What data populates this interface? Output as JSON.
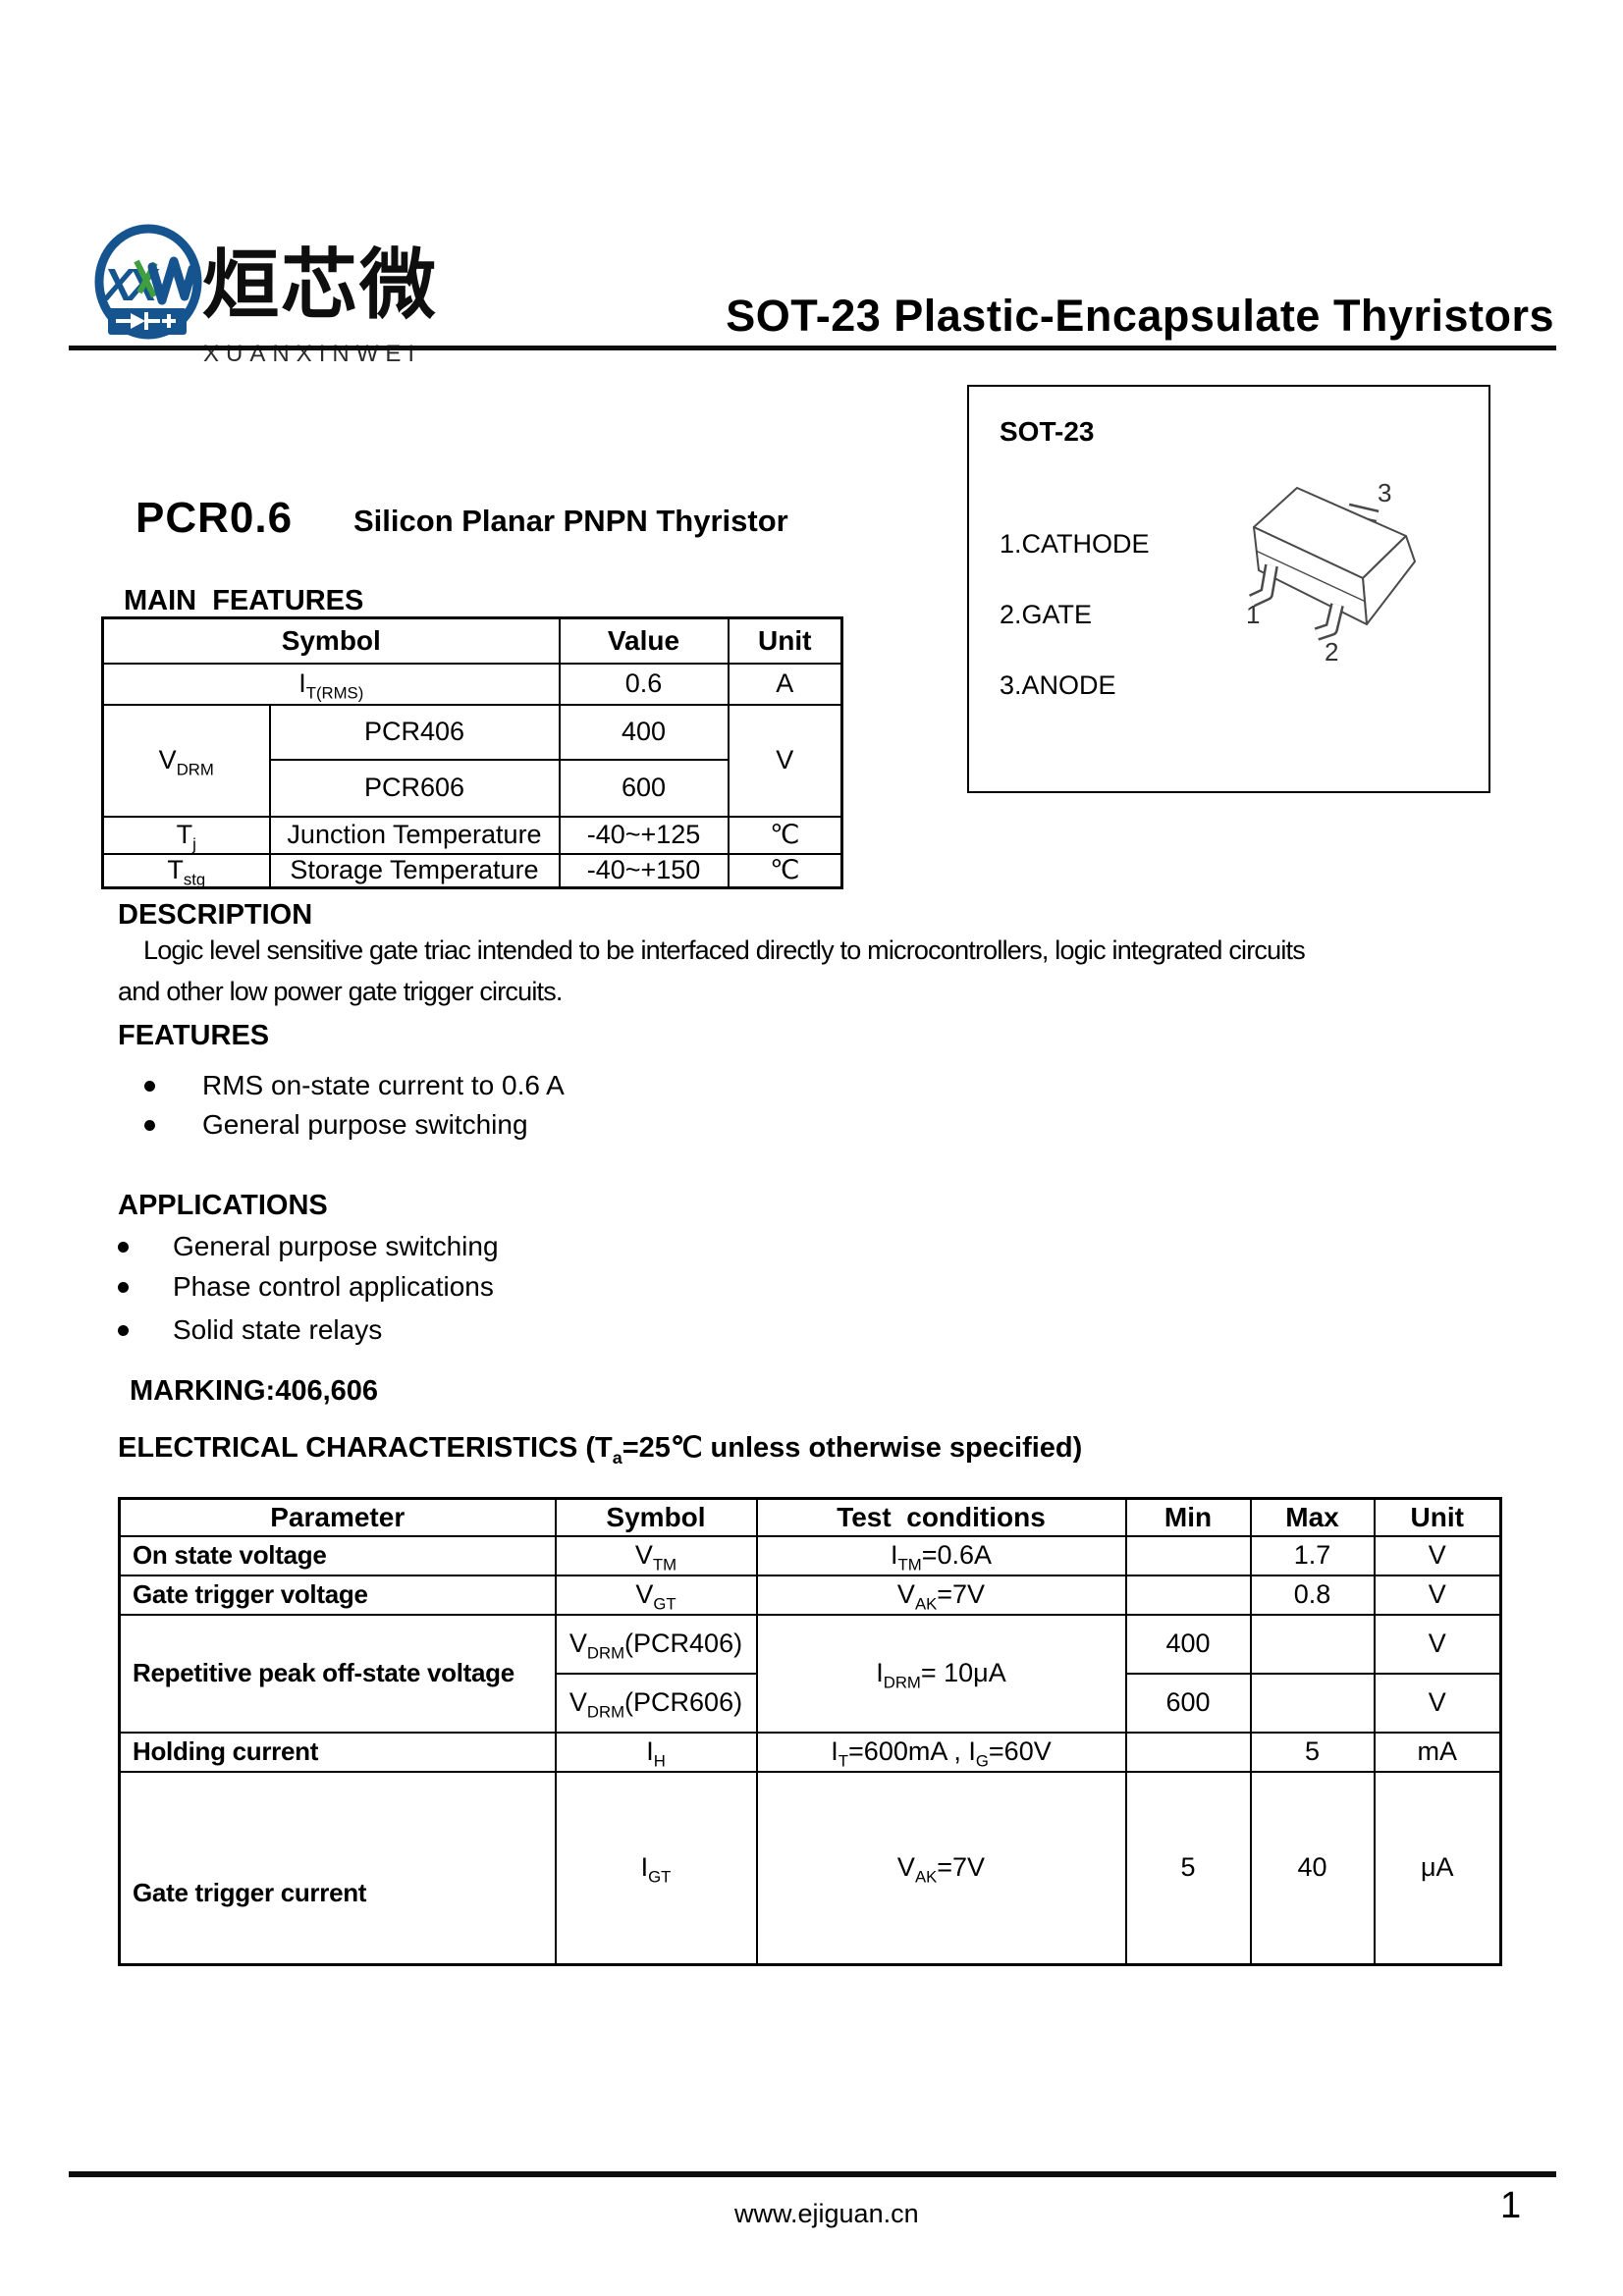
{
  "logo": {
    "zh": "烜芯微",
    "en": "XUANXINWEI"
  },
  "doc_title": "SOT-23 Plastic-Encapsulate Thyristors",
  "product": {
    "name": "PCR0.6",
    "subtitle": "Silicon Planar PNPN Thyristor"
  },
  "package": {
    "title": "SOT-23",
    "pins": [
      "1.CATHODE",
      "2.GATE",
      "3.ANODE"
    ],
    "pin_numbers": [
      "1",
      "2",
      "3"
    ]
  },
  "main_features": {
    "heading": "MAIN  FEATURES",
    "columns": {
      "symbol": "Symbol",
      "value": "Value",
      "unit": "Unit"
    },
    "rows": {
      "it_rms": {
        "symbol": "I_{T(RMS)}",
        "value": "0.6",
        "unit": "A"
      },
      "vdrm": {
        "symbol": "V_{DRM}",
        "model1": "PCR406",
        "value1": "400",
        "model2": "PCR606",
        "value2": "600",
        "unit": "V"
      },
      "tj": {
        "symbol": "T_{j}",
        "name": "Junction Temperature",
        "value": "-40~+125",
        "unit": "℃"
      },
      "tstg": {
        "symbol": "T_{stg}",
        "name": "Storage Temperature",
        "value": "-40~+150",
        "unit": "℃"
      }
    }
  },
  "description": {
    "heading": "DESCRIPTION",
    "line1": "Logic level sensitive gate triac intended to be interfaced directly to microcontrollers, logic integrated circuits",
    "line2": "and other low power gate trigger circuits."
  },
  "features": {
    "heading": "FEATURES",
    "items": [
      "RMS on-state current to 0.6 A",
      "General purpose switching"
    ]
  },
  "applications": {
    "heading": "APPLICATIONS",
    "items": [
      "General purpose switching",
      "Phase control applications",
      "Solid state relays"
    ]
  },
  "marking": "MARKING:406,606",
  "electrical": {
    "heading": "ELECTRICAL CHARACTERISTICS (T_{a}=25℃ unless otherwise specified)",
    "columns": {
      "parameter": "Parameter",
      "symbol": "Symbol",
      "test": "Test  conditions",
      "min": "Min",
      "max": "Max",
      "unit": "Unit"
    },
    "rows": {
      "on_state_voltage": {
        "param": "On state voltage",
        "symbol": "V_{TM}",
        "test": "I_{TM}=0.6A",
        "max": "1.7",
        "unit": "V"
      },
      "gate_trigger_voltage": {
        "param": "Gate trigger voltage",
        "symbol": "V_{GT}",
        "test": "V_{AK}=7V",
        "max": "0.8",
        "unit": "V"
      },
      "repetitive_peak_off_state_voltage": {
        "param": "Repetitive peak off-state voltage",
        "symbol1": "V_{DRM}(PCR406)",
        "symbol2": "V_{DRM}(PCR606)",
        "test": "I_{DRM}= 10μA",
        "min1": "400",
        "min2": "600",
        "unit1": "V",
        "unit2": "V"
      },
      "holding_current": {
        "param": "Holding current",
        "symbol": "I_{H}",
        "test": "I_{T}=600mA , I_{G}=60V",
        "max": "5",
        "unit": "mA"
      },
      "gate_trigger_current": {
        "param": "Gate trigger current",
        "symbol": "I_{GT}",
        "test": "V_{AK}=7V",
        "min": "5",
        "max": "40",
        "unit": "μA"
      }
    }
  },
  "footer": {
    "url": "www.ejiguan.cn",
    "page": "1"
  }
}
